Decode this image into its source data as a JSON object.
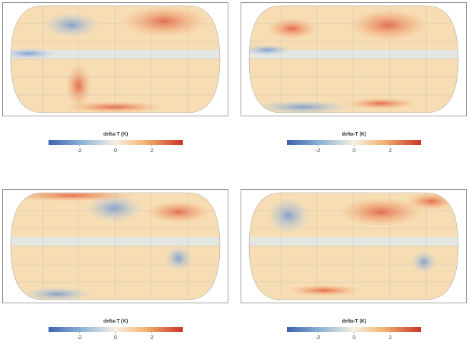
{
  "panels": [
    {
      "colorbar": {
        "label": "delta-T (K)",
        "lim": [
          -3.7,
          3.7
        ],
        "ticks": [
          -2,
          0,
          2
        ]
      }
    },
    {
      "colorbar": {
        "label": "delta-T (K)",
        "lim": [
          -3.7,
          3.7
        ],
        "ticks": [
          -2,
          0,
          2
        ]
      }
    },
    {
      "colorbar": {
        "label": "delta-T (K)",
        "lim": [
          -3.7,
          3.7
        ],
        "ticks": [
          -2,
          0,
          2
        ]
      }
    },
    {
      "colorbar": {
        "label": "delta-T (K)",
        "lim": [
          -3.7,
          3.7
        ],
        "ticks": [
          -2,
          0,
          2
        ]
      }
    }
  ]
}
